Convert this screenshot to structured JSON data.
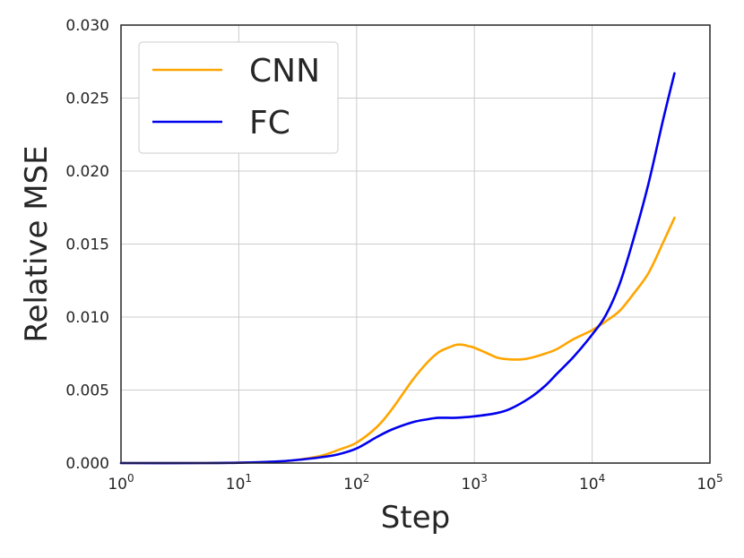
{
  "chart_data": {
    "type": "line",
    "xscale": "log",
    "xlabel": "Step",
    "ylabel": "Relative MSE",
    "xlim": [
      1,
      100000
    ],
    "ylim": [
      0,
      0.03
    ],
    "xticks": [
      {
        "value": 1,
        "base": "10",
        "exp": "0"
      },
      {
        "value": 10,
        "base": "10",
        "exp": "1"
      },
      {
        "value": 100,
        "base": "10",
        "exp": "2"
      },
      {
        "value": 1000,
        "base": "10",
        "exp": "3"
      },
      {
        "value": 10000,
        "base": "10",
        "exp": "4"
      },
      {
        "value": 100000,
        "base": "10",
        "exp": "5"
      }
    ],
    "yticks": [
      {
        "value": 0.0,
        "label": "0.000"
      },
      {
        "value": 0.005,
        "label": "0.005"
      },
      {
        "value": 0.01,
        "label": "0.010"
      },
      {
        "value": 0.015,
        "label": "0.015"
      },
      {
        "value": 0.02,
        "label": "0.020"
      },
      {
        "value": 0.025,
        "label": "0.025"
      },
      {
        "value": 0.03,
        "label": "0.030"
      }
    ],
    "grid": true,
    "legend_position": "top-left",
    "series": [
      {
        "name": "CNN",
        "color": "#FFA500",
        "x": [
          1,
          5,
          10,
          20,
          30,
          50,
          70,
          100,
          150,
          200,
          300,
          400,
          500,
          600,
          700,
          800,
          900,
          1000,
          1300,
          1600,
          2000,
          2500,
          3000,
          4000,
          5000,
          7000,
          10000,
          13000,
          17000,
          22000,
          30000,
          40000,
          50000
        ],
        "y": [
          0,
          0,
          3e-05,
          0.0001,
          0.0002,
          0.0005,
          0.0009,
          0.0014,
          0.0025,
          0.0037,
          0.0057,
          0.0069,
          0.0076,
          0.0079,
          0.0081,
          0.0081,
          0.008,
          0.0079,
          0.0075,
          0.0072,
          0.0071,
          0.0071,
          0.0072,
          0.0075,
          0.0078,
          0.0085,
          0.0091,
          0.0097,
          0.0104,
          0.0115,
          0.013,
          0.0151,
          0.0168
        ]
      },
      {
        "name": "FC",
        "color": "#0000EE",
        "x": [
          1,
          5,
          10,
          20,
          30,
          50,
          70,
          100,
          150,
          200,
          300,
          400,
          500,
          700,
          1000,
          1500,
          2000,
          3000,
          4000,
          5000,
          7000,
          10000,
          13000,
          17000,
          22000,
          30000,
          40000,
          50000
        ],
        "y": [
          0,
          0,
          2e-05,
          0.0001,
          0.0002,
          0.0004,
          0.0006,
          0.001,
          0.0018,
          0.0023,
          0.0028,
          0.003,
          0.0031,
          0.0031,
          0.0032,
          0.0034,
          0.0037,
          0.0045,
          0.0053,
          0.0061,
          0.0073,
          0.0088,
          0.0101,
          0.0122,
          0.0151,
          0.0191,
          0.0235,
          0.0267
        ]
      }
    ]
  }
}
